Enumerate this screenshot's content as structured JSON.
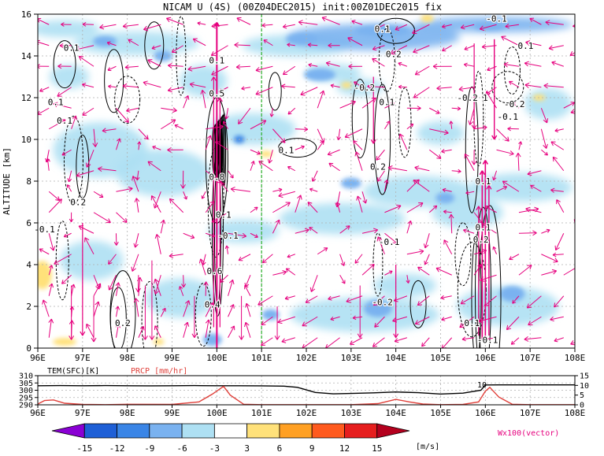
{
  "chart_data": [
    {
      "type": "heatmap",
      "title": "NICAM U (4S) (00Z04DEC2015) init:00Z01DEC2015 fix",
      "ylabel": "ALTITUDE [km]",
      "xlabel": "",
      "xlim": [
        96,
        108
      ],
      "ylim": [
        0,
        16
      ],
      "x_ticks": [
        "96E",
        "97E",
        "98E",
        "99E",
        "100E",
        "101E",
        "102E",
        "103E",
        "104E",
        "105E",
        "106E",
        "107E",
        "108E"
      ],
      "y_ticks": [
        "0",
        "2",
        "4",
        "6",
        "8",
        "10",
        "12",
        "14",
        "16"
      ],
      "grid": true,
      "reference_line_x": 101,
      "colorbar": {
        "levels": [
          "-15",
          "-12",
          "-9",
          "-6",
          "-3",
          "3",
          "6",
          "9",
          "12",
          "15"
        ],
        "unit": "[m/s]",
        "colors": [
          "#8a00d4",
          "#1e5fd6",
          "#3a85e6",
          "#7ab2f0",
          "#aee0f3",
          "#ffffff",
          "#ffe17a",
          "#ffa023",
          "#ff5a1e",
          "#e61e1e",
          "#b4001e"
        ]
      },
      "vector_label": "Wx100(vector)",
      "vector_color": "#e6007e",
      "contour_labels": [
        {
          "x": 96.75,
          "y": 14.4,
          "text": "0.1"
        },
        {
          "x": 96.4,
          "y": 11.8,
          "text": "0.1"
        },
        {
          "x": 96.6,
          "y": 10.9,
          "text": "0.1"
        },
        {
          "x": 96.9,
          "y": 7.0,
          "text": "0.2"
        },
        {
          "x": 96.15,
          "y": 5.7,
          "text": "-0.1"
        },
        {
          "x": 97.9,
          "y": 1.2,
          "text": "0.2"
        },
        {
          "x": 100.0,
          "y": 13.8,
          "text": "0.1"
        },
        {
          "x": 100.0,
          "y": 12.2,
          "text": "0.5"
        },
        {
          "x": 100.0,
          "y": 8.2,
          "text": "0.8"
        },
        {
          "x": 100.15,
          "y": 6.4,
          "text": "0.1"
        },
        {
          "x": 100.25,
          "y": 5.4,
          "text": "-0.1"
        },
        {
          "x": 99.95,
          "y": 3.7,
          "text": "0.6"
        },
        {
          "x": 99.9,
          "y": 2.1,
          "text": "0.4"
        },
        {
          "x": 101.55,
          "y": 9.5,
          "text": "0.1"
        },
        {
          "x": 103.7,
          "y": 15.3,
          "text": "0.1"
        },
        {
          "x": 103.95,
          "y": 14.1,
          "text": "0.2"
        },
        {
          "x": 103.3,
          "y": 12.5,
          "text": "-0.2"
        },
        {
          "x": 103.8,
          "y": 11.8,
          "text": "0.1"
        },
        {
          "x": 103.6,
          "y": 8.7,
          "text": "0.2"
        },
        {
          "x": 103.85,
          "y": 5.1,
          "text": "-0.1"
        },
        {
          "x": 103.7,
          "y": 2.2,
          "text": "-0.2"
        },
        {
          "x": 105.6,
          "y": 12.0,
          "text": "-0.2"
        },
        {
          "x": 106.0,
          "y": 12.0,
          "text": "1"
        },
        {
          "x": 106.65,
          "y": 11.7,
          "text": "-0.2"
        },
        {
          "x": 106.5,
          "y": 11.1,
          "text": "-0.1"
        },
        {
          "x": 106.9,
          "y": 14.5,
          "text": "0.1"
        },
        {
          "x": 106.25,
          "y": 15.8,
          "text": "-0.1"
        },
        {
          "x": 105.95,
          "y": 8.0,
          "text": "0.1"
        },
        {
          "x": 105.95,
          "y": 5.8,
          "text": "0.1"
        },
        {
          "x": 105.9,
          "y": 5.2,
          "text": "0.2"
        },
        {
          "x": 105.7,
          "y": 1.2,
          "text": "0.1"
        },
        {
          "x": 106.05,
          "y": 0.4,
          "text": "-0.1"
        }
      ]
    },
    {
      "type": "line",
      "x_range": [
        96,
        108
      ],
      "x_ticks": [
        "96E",
        "97E",
        "98E",
        "99E",
        "100E",
        "101E",
        "102E",
        "103E",
        "104E",
        "105E",
        "106E",
        "107E",
        "108E"
      ],
      "left_axis": {
        "label": "TEM(SFC)[K]",
        "ticks": [
          "290",
          "295",
          "300",
          "305",
          "310"
        ],
        "range": [
          290,
          310
        ]
      },
      "right_axis": {
        "label": "PRCP [mm/hr]",
        "ticks": [
          "0",
          "5",
          "10",
          "15"
        ],
        "range": [
          0,
          15
        ]
      },
      "annotation": "10",
      "series": [
        {
          "name": "TEM(SFC)[K]",
          "color": "#000000",
          "x": [
            96.0,
            96.5,
            97.0,
            97.5,
            98.0,
            98.5,
            99.0,
            99.5,
            100.0,
            100.5,
            101.0,
            101.5,
            101.8,
            102.2,
            102.6,
            103.0,
            103.5,
            104.0,
            104.5,
            105.0,
            105.5,
            105.9,
            106.0,
            106.3,
            107.0,
            107.5,
            108.0
          ],
          "y": [
            303.1,
            303.2,
            303.1,
            303.2,
            303.1,
            303.0,
            303.1,
            303.2,
            303.1,
            303.1,
            303.0,
            302.8,
            302.0,
            298.5,
            297.5,
            297.8,
            298.2,
            298.8,
            298.3,
            297.4,
            298.0,
            300.0,
            303.6,
            303.7,
            303.7,
            303.7,
            303.7
          ]
        },
        {
          "name": "PRCP [mm/hr]",
          "color": "#e0403a",
          "x": [
            96.0,
            96.15,
            96.35,
            96.6,
            97.0,
            97.5,
            98.0,
            99.0,
            99.6,
            99.9,
            100.15,
            100.3,
            100.6,
            101.0,
            102.0,
            103.0,
            103.6,
            104.0,
            104.3,
            104.6,
            105.0,
            105.5,
            105.85,
            106.0,
            106.1,
            106.3,
            106.6,
            107.0,
            108.0
          ],
          "y": [
            0.4,
            2.2,
            2.5,
            0.8,
            0.2,
            0.1,
            0.3,
            0.2,
            1.5,
            5.5,
            9.5,
            5.0,
            0.3,
            0.1,
            0.1,
            0.1,
            0.6,
            2.8,
            1.5,
            0.4,
            0.1,
            0.2,
            1.5,
            7.0,
            9.0,
            4.0,
            0.3,
            0.1,
            0.1
          ]
        }
      ]
    }
  ]
}
